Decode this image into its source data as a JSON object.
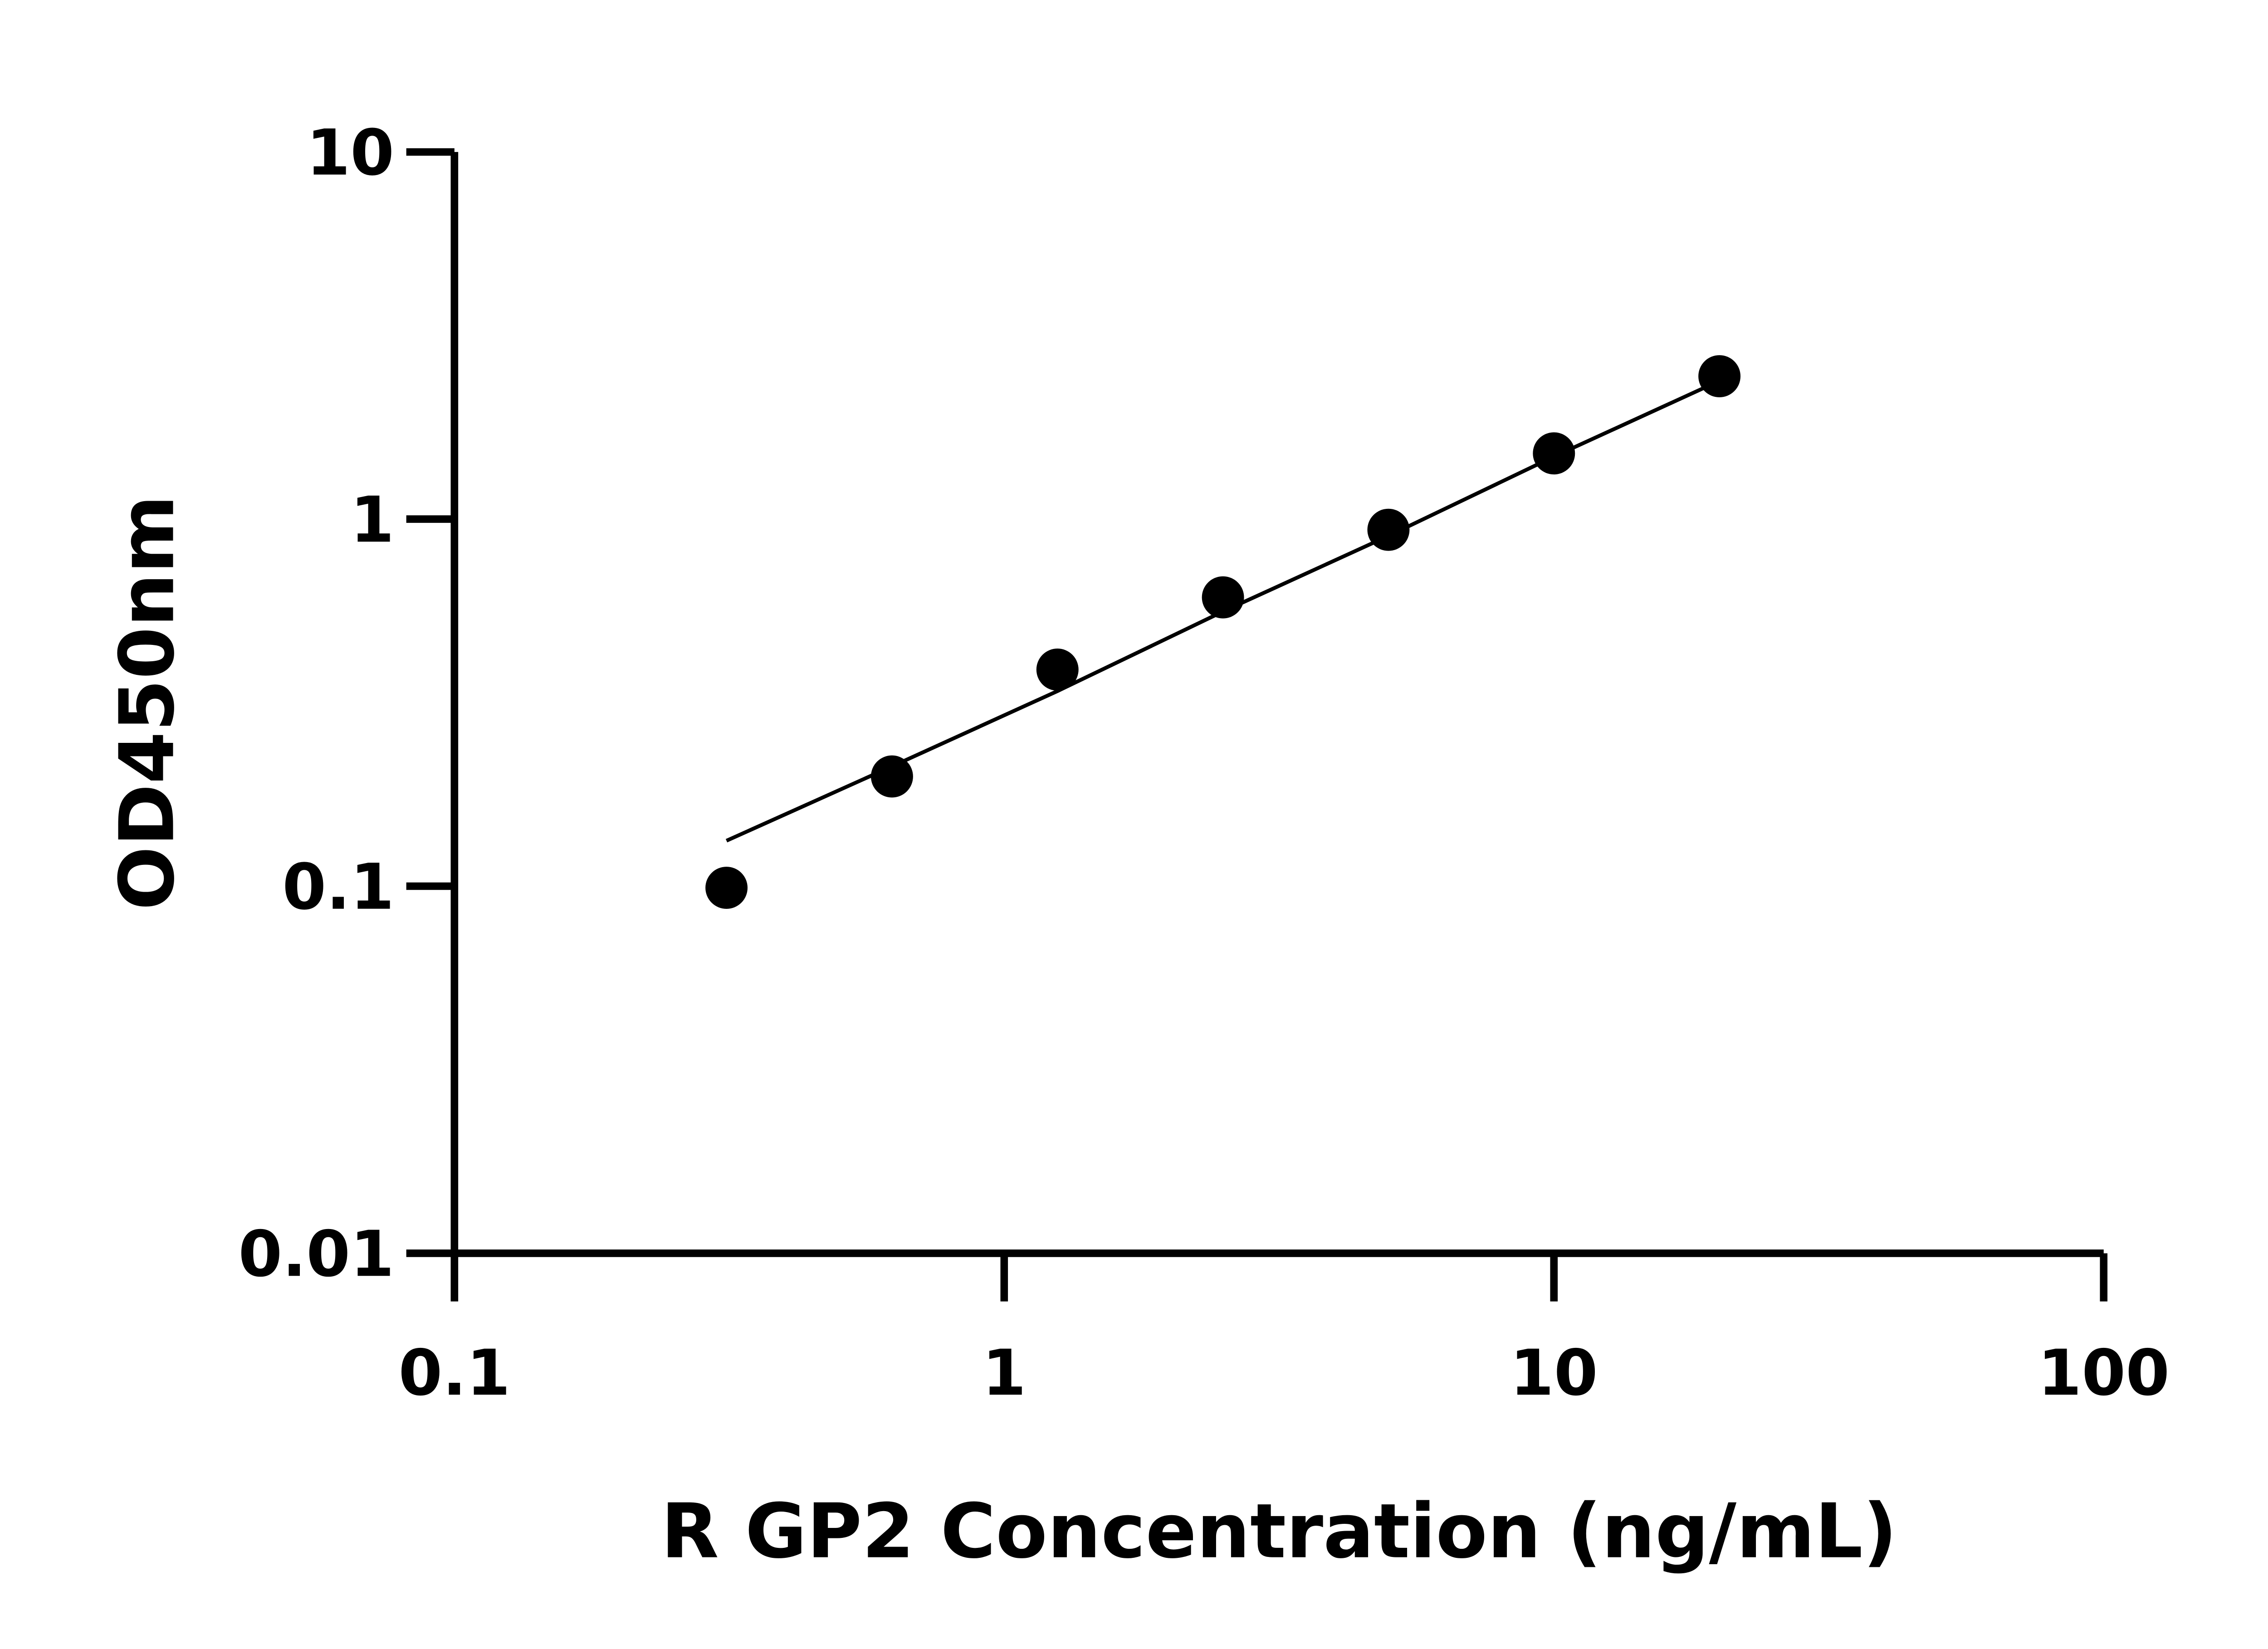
{
  "chart_data": {
    "type": "scatter",
    "title": "",
    "xlabel": "R GP2 Concentration (ng/mL)",
    "ylabel": "OD450nm",
    "xscale": "log",
    "yscale": "log",
    "xlim": [
      0.1,
      100
    ],
    "ylim": [
      0.01,
      10
    ],
    "xticks": [
      0.1,
      1,
      10,
      100
    ],
    "xtick_labels": [
      "0.1",
      "1",
      "10",
      "100"
    ],
    "yticks": [
      0.01,
      0.1,
      1,
      10
    ],
    "ytick_labels": [
      "0.01",
      "0.1",
      "1",
      "10"
    ],
    "grid": false,
    "series": [
      {
        "x": [
          0.3125,
          0.625,
          1.25,
          2.5,
          5,
          10,
          20
        ],
        "y": [
          0.099,
          0.199,
          0.389,
          0.612,
          0.935,
          1.51,
          2.45
        ],
        "marker": "circle",
        "color": "#000000"
      }
    ],
    "fit_curve": {
      "x": [
        0.3125,
        0.625,
        1.25,
        2.5,
        5,
        10,
        20
      ],
      "y": [
        0.133,
        0.212,
        0.34,
        0.56,
        0.9,
        1.48,
        2.38
      ],
      "color": "#000000"
    }
  }
}
